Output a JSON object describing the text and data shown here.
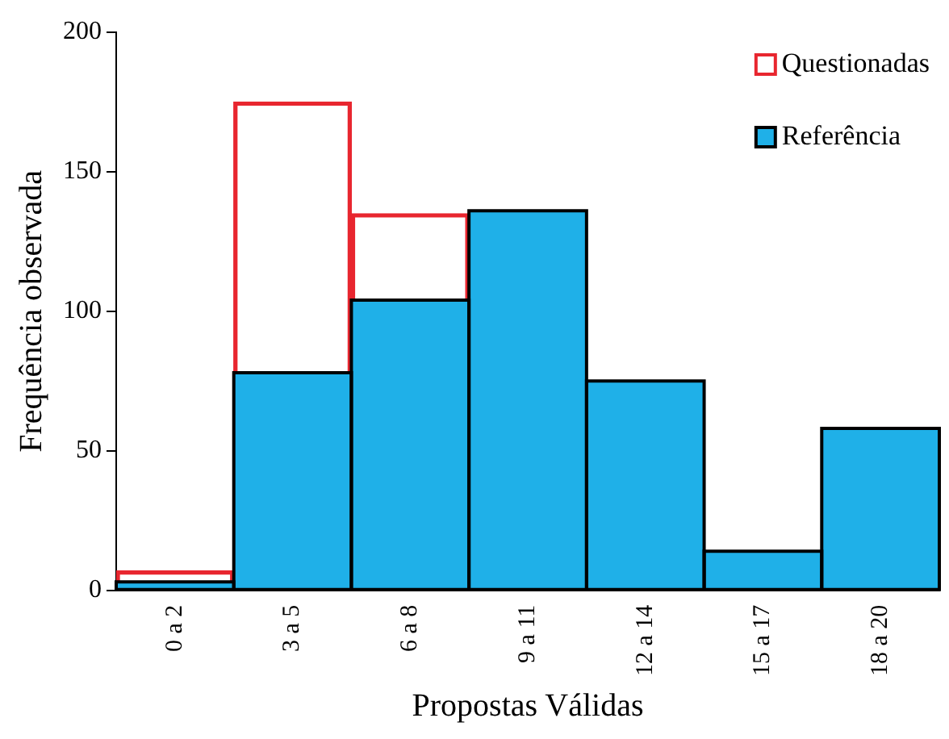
{
  "chart_data": {
    "type": "bar",
    "stacked": true,
    "xlabel": "Propostas Válidas",
    "ylabel": "Frequência observada",
    "categories": [
      "0 a 2",
      "3 a 5",
      "6 a 8",
      "9 a 11",
      "12 a 14",
      "15 a 17",
      "18 a 20"
    ],
    "series": [
      {
        "name": "Referência",
        "color": "#1fb0e8",
        "values": [
          3,
          78,
          104,
          136,
          75,
          14,
          58
        ]
      },
      {
        "name": "Questionadas",
        "color": "#e8262f",
        "values": [
          4,
          97,
          31,
          null,
          null,
          null,
          null
        ]
      }
    ],
    "ylim": [
      0,
      200
    ],
    "yticks": [
      0,
      50,
      100,
      150,
      200
    ],
    "grid": false,
    "legend": "top right"
  }
}
